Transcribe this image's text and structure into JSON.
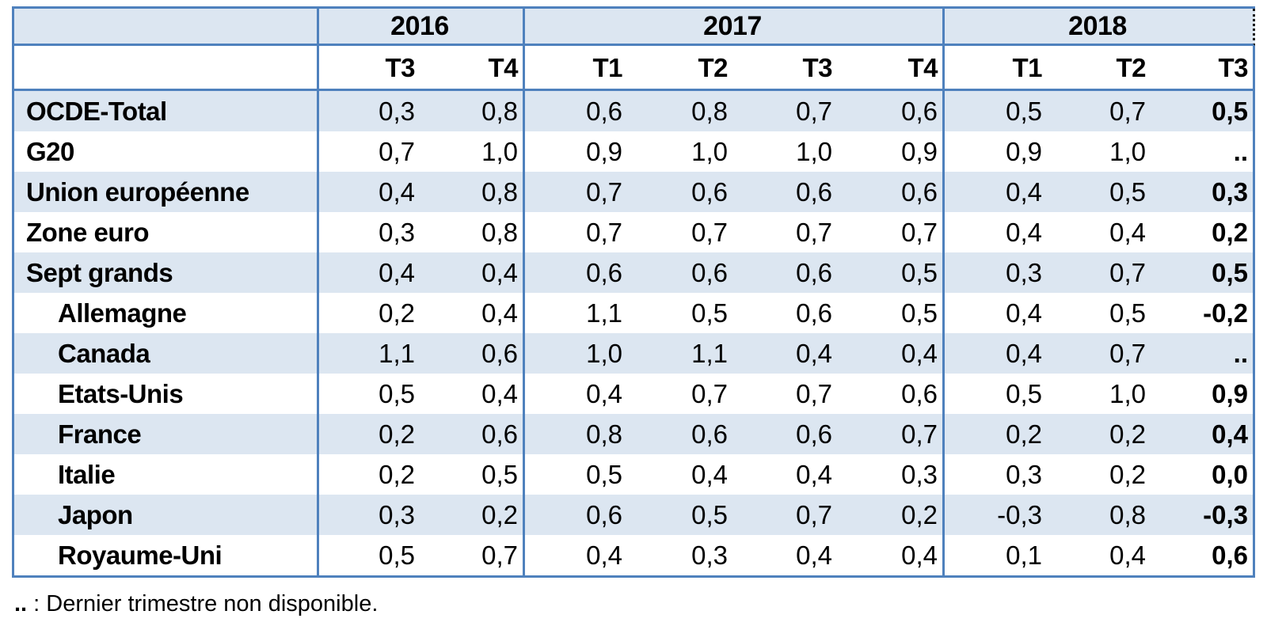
{
  "table": {
    "corner_label": "",
    "year_groups": [
      {
        "label": "2016",
        "quarters": [
          "T3",
          "T4"
        ]
      },
      {
        "label": "2017",
        "quarters": [
          "T1",
          "T2",
          "T3",
          "T4"
        ]
      },
      {
        "label": "2018",
        "quarters": [
          "T1",
          "T2",
          "T3"
        ]
      }
    ],
    "quarter_headers": [
      "T3",
      "T4",
      "T1",
      "T2",
      "T3",
      "T4",
      "T1",
      "T2",
      "T3"
    ],
    "rows": [
      {
        "label": "OCDE-Total",
        "indent": false,
        "values": [
          "0,3",
          "0,8",
          "0,6",
          "0,8",
          "0,7",
          "0,6",
          "0,5",
          "0,7",
          "0,5"
        ]
      },
      {
        "label": "G20",
        "indent": false,
        "values": [
          "0,7",
          "1,0",
          "0,9",
          "1,0",
          "1,0",
          "0,9",
          "0,9",
          "1,0",
          ".."
        ]
      },
      {
        "label": "Union européenne",
        "indent": false,
        "values": [
          "0,4",
          "0,8",
          "0,7",
          "0,6",
          "0,6",
          "0,6",
          "0,4",
          "0,5",
          "0,3"
        ]
      },
      {
        "label": "Zone euro",
        "indent": false,
        "values": [
          "0,3",
          "0,8",
          "0,7",
          "0,7",
          "0,7",
          "0,7",
          "0,4",
          "0,4",
          "0,2"
        ]
      },
      {
        "label": "Sept grands",
        "indent": false,
        "values": [
          "0,4",
          "0,4",
          "0,6",
          "0,6",
          "0,6",
          "0,5",
          "0,3",
          "0,7",
          "0,5"
        ]
      },
      {
        "label": "Allemagne",
        "indent": true,
        "values": [
          "0,2",
          "0,4",
          "1,1",
          "0,5",
          "0,6",
          "0,5",
          "0,4",
          "0,5",
          "-0,2"
        ]
      },
      {
        "label": "Canada",
        "indent": true,
        "values": [
          "1,1",
          "0,6",
          "1,0",
          "1,1",
          "0,4",
          "0,4",
          "0,4",
          "0,7",
          ".."
        ]
      },
      {
        "label": "Etats-Unis",
        "indent": true,
        "values": [
          "0,5",
          "0,4",
          "0,4",
          "0,7",
          "0,7",
          "0,6",
          "0,5",
          "1,0",
          "0,9"
        ]
      },
      {
        "label": "France",
        "indent": true,
        "values": [
          "0,2",
          "0,6",
          "0,8",
          "0,6",
          "0,6",
          "0,7",
          "0,2",
          "0,2",
          "0,4"
        ]
      },
      {
        "label": "Italie",
        "indent": true,
        "values": [
          "0,2",
          "0,5",
          "0,5",
          "0,4",
          "0,4",
          "0,3",
          "0,3",
          "0,2",
          "0,0"
        ]
      },
      {
        "label": "Japon",
        "indent": true,
        "values": [
          "0,3",
          "0,2",
          "0,6",
          "0,5",
          "0,7",
          "0,2",
          "-0,3",
          "0,8",
          "-0,3"
        ]
      },
      {
        "label": "Royaume-Uni",
        "indent": true,
        "values": [
          "0,5",
          "0,7",
          "0,4",
          "0,3",
          "0,4",
          "0,4",
          "0,1",
          "0,4",
          "0,6"
        ]
      }
    ]
  },
  "footnote": {
    "symbol": "..",
    "text": " : Dernier trimestre non disponible."
  },
  "colors": {
    "band": "#dce6f1",
    "border": "#4f81bd",
    "text": "#000000",
    "dotted_edge": "#1a1a1a"
  }
}
